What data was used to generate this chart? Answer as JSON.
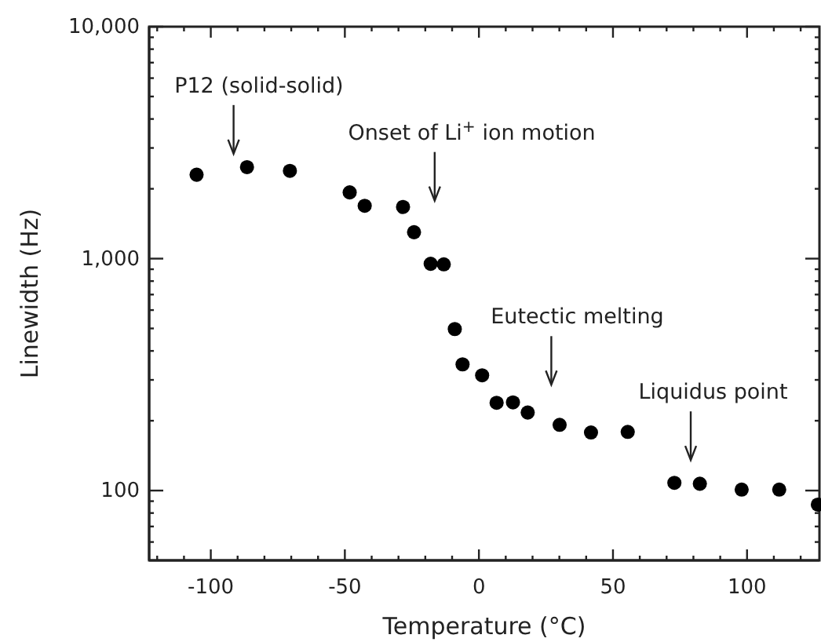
{
  "chart_data": {
    "type": "scatter",
    "xlabel": "Temperature (°C)",
    "ylabel": "Linewidth (Hz)",
    "log": "y",
    "marker": "circle",
    "grid": false,
    "x": [
      -105.3,
      -86.5,
      -70.5,
      -48.2,
      -42.6,
      -28.3,
      -24.2,
      -18,
      -13.1,
      -9,
      -6.1,
      1.2,
      6.6,
      12.7,
      18.2,
      30.1,
      41.8,
      55.5,
      72.9,
      82.4,
      98,
      112,
      126.4
    ],
    "series": [
      {
        "color": "#000000",
        "values": [
          2300,
          2480,
          2390,
          1930,
          1690,
          1670,
          1300,
          950,
          945,
          497,
          350,
          314,
          239,
          240,
          217,
          192,
          178,
          179,
          108,
          107,
          101,
          101,
          87
        ]
      }
    ],
    "xlim": [
      -123,
      127
    ],
    "ylim": [
      50,
      10000
    ],
    "xticks": [
      -100,
      -50,
      0,
      50,
      100,
      {
        "value": -120,
        "label": null
      },
      {
        "value": -110,
        "label": null
      },
      {
        "value": -90,
        "label": null
      },
      {
        "value": -80,
        "label": null
      },
      {
        "value": -70,
        "label": null
      },
      {
        "value": -60,
        "label": null
      },
      {
        "value": -40,
        "label": null
      },
      {
        "value": -30,
        "label": null
      },
      {
        "value": -20,
        "label": null
      },
      {
        "value": -10,
        "label": null
      },
      {
        "value": 10,
        "label": null
      },
      {
        "value": 20,
        "label": null
      },
      {
        "value": 30,
        "label": null
      },
      {
        "value": 40,
        "label": null
      },
      {
        "value": 60,
        "label": null
      },
      {
        "value": 70,
        "label": null
      },
      {
        "value": 80,
        "label": null
      },
      {
        "value": 90,
        "label": null
      },
      {
        "value": 110,
        "label": null
      },
      {
        "value": 120,
        "label": null
      }
    ],
    "yticks": [
      {
        "value": 100,
        "label": "100"
      },
      {
        "value": 1000,
        "label": "1,000"
      },
      {
        "value": 10000,
        "label": "10,000"
      },
      {
        "value": 60,
        "label": null
      },
      {
        "value": 70,
        "label": null
      },
      {
        "value": 80,
        "label": null
      },
      {
        "value": 90,
        "label": null
      },
      {
        "value": 200,
        "label": null
      },
      {
        "value": 300,
        "label": null
      },
      {
        "value": 400,
        "label": null
      },
      {
        "value": 500,
        "label": null
      },
      {
        "value": 600,
        "label": null
      },
      {
        "value": 700,
        "label": null
      },
      {
        "value": 800,
        "label": null
      },
      {
        "value": 900,
        "label": null
      },
      {
        "value": 2000,
        "label": null
      },
      {
        "value": 3000,
        "label": null
      },
      {
        "value": 4000,
        "label": null
      },
      {
        "value": 5000,
        "label": null
      },
      {
        "value": 6000,
        "label": null
      },
      {
        "value": 7000,
        "label": null
      },
      {
        "value": 8000,
        "label": null
      },
      {
        "value": 9000,
        "label": null
      }
    ],
    "annotations": [
      "P12 (solid-solid)",
      "Onset of Li$^{+}$ ion motion",
      "Eutectic melting",
      "Liquidus point"
    ]
  }
}
